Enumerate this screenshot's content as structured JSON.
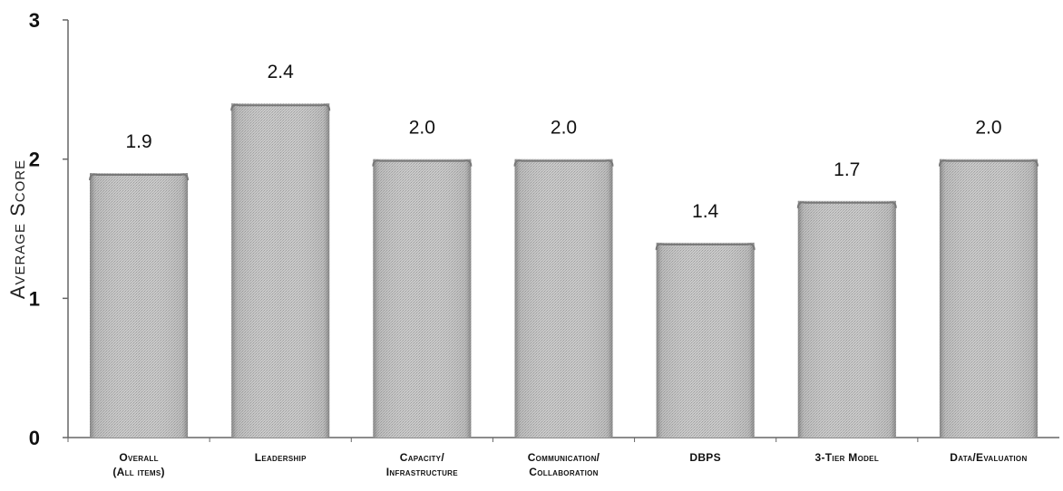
{
  "chart_data": {
    "type": "bar",
    "title": "",
    "xlabel": "",
    "ylabel": "Average Score",
    "ylim": [
      0,
      3
    ],
    "yticks": [
      "0",
      "1",
      "2",
      "3"
    ],
    "categories": [
      "Overall\n(All items)",
      "Leadership",
      "Capacity/\nInfrastructure",
      "Communication/\nCollaboration",
      "DBPS",
      "3-Tier Model",
      "Data/Evaluation"
    ],
    "values": [
      1.9,
      2.4,
      2.0,
      2.0,
      1.4,
      1.7,
      2.0
    ],
    "data_labels": [
      "1.9",
      "2.4",
      "2.0",
      "2.0",
      "1.4",
      "1.7",
      "2.0"
    ],
    "grid": false,
    "bar_color": "#bdbdbd"
  }
}
